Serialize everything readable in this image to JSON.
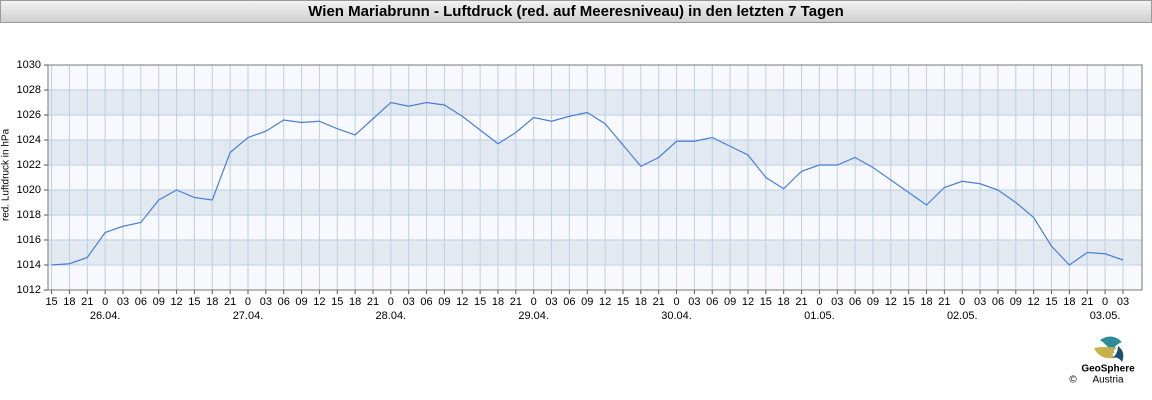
{
  "chart_data": {
    "type": "line",
    "title": "Wien Mariabrunn - Luftdruck (red. auf Meeresniveau) in den letzten 7 Tagen",
    "ylabel": "red. Luftdruck in hPa",
    "x": [
      15,
      18,
      21,
      24,
      27,
      30,
      33,
      36,
      39,
      42,
      45,
      48,
      51,
      54,
      57,
      60,
      63,
      66,
      69,
      72,
      75,
      78,
      81,
      84,
      87,
      90,
      93,
      96,
      99,
      102,
      105,
      108,
      111,
      114,
      117,
      120,
      123,
      126,
      129,
      132,
      135,
      138,
      141,
      144,
      147,
      150,
      153,
      156,
      159,
      162,
      165,
      168,
      171,
      174,
      177,
      180,
      183,
      186,
      189,
      192,
      195
    ],
    "series": [
      {
        "name": "Luftdruck",
        "color": "#4a7fd4",
        "values": [
          1014.0,
          1014.1,
          1014.6,
          1016.6,
          1017.1,
          1017.4,
          1019.2,
          1020.0,
          1019.4,
          1019.2,
          1023.0,
          1024.2,
          1024.7,
          1025.6,
          1025.4,
          1025.5,
          1024.9,
          1024.4,
          1025.7,
          1027.0,
          1026.7,
          1027.0,
          1026.8,
          1025.9,
          1024.8,
          1023.7,
          1024.6,
          1025.8,
          1025.5,
          1025.9,
          1026.2,
          1025.3,
          1023.6,
          1021.9,
          1022.6,
          1023.9,
          1023.9,
          1024.2,
          1023.5,
          1022.8,
          1021.0,
          1020.1,
          1021.5,
          1022.0,
          1022.0,
          1022.6,
          1021.8,
          1020.8,
          1019.8,
          1018.8,
          1020.2,
          1020.7,
          1020.5,
          1020.0,
          1019.0,
          1017.8,
          1015.5,
          1014.0,
          1015.0,
          1014.9,
          1014.4
        ]
      }
    ],
    "xlim": [
      14.4,
      198.2
    ],
    "xticks": [
      {
        "value": 15,
        "label": "15"
      },
      {
        "value": 18,
        "label": "18"
      },
      {
        "value": 21,
        "label": "21"
      },
      {
        "value": 24,
        "label": "0"
      },
      {
        "value": 27,
        "label": "03"
      },
      {
        "value": 30,
        "label": "06"
      },
      {
        "value": 33,
        "label": "09"
      },
      {
        "value": 36,
        "label": "12"
      },
      {
        "value": 39,
        "label": "15"
      },
      {
        "value": 42,
        "label": "18"
      },
      {
        "value": 45,
        "label": "21"
      },
      {
        "value": 48,
        "label": "0"
      },
      {
        "value": 51,
        "label": "03"
      },
      {
        "value": 54,
        "label": "06"
      },
      {
        "value": 57,
        "label": "09"
      },
      {
        "value": 60,
        "label": "12"
      },
      {
        "value": 63,
        "label": "15"
      },
      {
        "value": 66,
        "label": "18"
      },
      {
        "value": 69,
        "label": "21"
      },
      {
        "value": 72,
        "label": "0"
      },
      {
        "value": 75,
        "label": "03"
      },
      {
        "value": 78,
        "label": "06"
      },
      {
        "value": 81,
        "label": "09"
      },
      {
        "value": 84,
        "label": "12"
      },
      {
        "value": 87,
        "label": "15"
      },
      {
        "value": 90,
        "label": "18"
      },
      {
        "value": 93,
        "label": "21"
      },
      {
        "value": 96,
        "label": "0"
      },
      {
        "value": 99,
        "label": "03"
      },
      {
        "value": 102,
        "label": "06"
      },
      {
        "value": 105,
        "label": "09"
      },
      {
        "value": 108,
        "label": "12"
      },
      {
        "value": 111,
        "label": "15"
      },
      {
        "value": 114,
        "label": "18"
      },
      {
        "value": 117,
        "label": "21"
      },
      {
        "value": 120,
        "label": "0"
      },
      {
        "value": 123,
        "label": "03"
      },
      {
        "value": 126,
        "label": "06"
      },
      {
        "value": 129,
        "label": "09"
      },
      {
        "value": 132,
        "label": "12"
      },
      {
        "value": 135,
        "label": "15"
      },
      {
        "value": 138,
        "label": "18"
      },
      {
        "value": 141,
        "label": "21"
      },
      {
        "value": 144,
        "label": "0"
      },
      {
        "value": 147,
        "label": "03"
      },
      {
        "value": 150,
        "label": "06"
      },
      {
        "value": 153,
        "label": "09"
      },
      {
        "value": 156,
        "label": "12"
      },
      {
        "value": 159,
        "label": "15"
      },
      {
        "value": 162,
        "label": "18"
      },
      {
        "value": 165,
        "label": "21"
      },
      {
        "value": 168,
        "label": "0"
      },
      {
        "value": 171,
        "label": "03"
      },
      {
        "value": 174,
        "label": "06"
      },
      {
        "value": 177,
        "label": "09"
      },
      {
        "value": 180,
        "label": "12"
      },
      {
        "value": 183,
        "label": "15"
      },
      {
        "value": 186,
        "label": "18"
      },
      {
        "value": 189,
        "label": "21"
      },
      {
        "value": 192,
        "label": "0"
      },
      {
        "value": 195,
        "label": "03"
      }
    ],
    "date_labels": [
      {
        "value": 24,
        "label": "26.04."
      },
      {
        "value": 48,
        "label": "27.04."
      },
      {
        "value": 72,
        "label": "28.04."
      },
      {
        "value": 96,
        "label": "29.04."
      },
      {
        "value": 120,
        "label": "30.04."
      },
      {
        "value": 144,
        "label": "01.05."
      },
      {
        "value": 168,
        "label": "02.05."
      },
      {
        "value": 192,
        "label": "03.05."
      }
    ],
    "ylim": [
      1012,
      1030
    ],
    "yticks": [
      1012,
      1014,
      1016,
      1018,
      1020,
      1022,
      1024,
      1026,
      1028,
      1030
    ],
    "grid": true,
    "banded": true
  },
  "footer": {
    "logo_name": "GeoSphere",
    "logo_sub": "Austria",
    "copyright": "©"
  }
}
